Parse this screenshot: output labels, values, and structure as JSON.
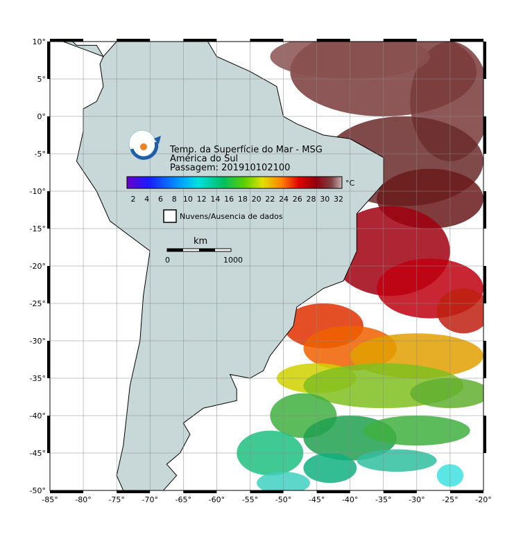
{
  "map": {
    "title": "Temp. da Superfície do Mar - MSG",
    "region": "América do Sul",
    "pass": "Passagem: 201910102100",
    "colorbar": {
      "unit": "°C",
      "ticks": [
        2,
        4,
        6,
        8,
        10,
        12,
        14,
        16,
        18,
        20,
        22,
        24,
        26,
        28,
        30,
        32
      ]
    },
    "legend": "Nuvens/Ausencia de dados",
    "scale": {
      "unit": "km",
      "labels": [
        "0",
        "1000"
      ]
    },
    "lat_labels": [
      "10°",
      "5°",
      "0°",
      "-5°",
      "-10°",
      "-15°",
      "-20°",
      "-25°",
      "-30°",
      "-35°",
      "-40°",
      "-45°",
      "-50°"
    ],
    "lon_labels": [
      "-85°",
      "-80°",
      "-75°",
      "-70°",
      "-65°",
      "-60°",
      "-55°",
      "-50°",
      "-45°",
      "-40°",
      "-35°",
      "-30°",
      "-25°",
      "-20°"
    ]
  }
}
